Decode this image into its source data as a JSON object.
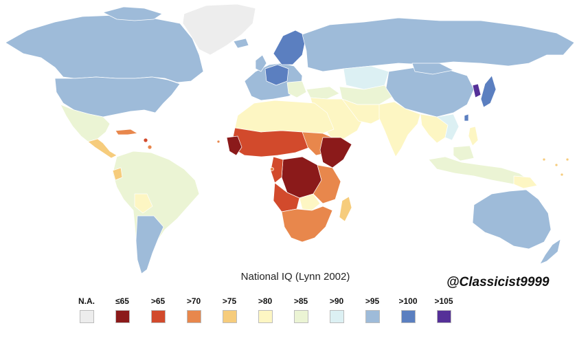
{
  "title": "National IQ (Lynn 2002)",
  "credit": "@Classicist9999",
  "legend": [
    {
      "label": "N.A.",
      "color": "#ededed"
    },
    {
      "label": "≤65",
      "color": "#8b1a1a"
    },
    {
      "label": ">65",
      "color": "#d24a2c"
    },
    {
      "label": ">70",
      "color": "#e8874c"
    },
    {
      "label": ">75",
      "color": "#f6cc7c"
    },
    {
      "label": ">80",
      "color": "#fdf6c3"
    },
    {
      "label": ">85",
      "color": "#ebf4d4"
    },
    {
      "label": ">90",
      "color": "#dcf0f3"
    },
    {
      "label": ">95",
      "color": "#9ebbd9"
    },
    {
      "label": ">100",
      "color": "#5b7fc0"
    },
    {
      "label": ">105",
      "color": "#553098"
    }
  ]
}
